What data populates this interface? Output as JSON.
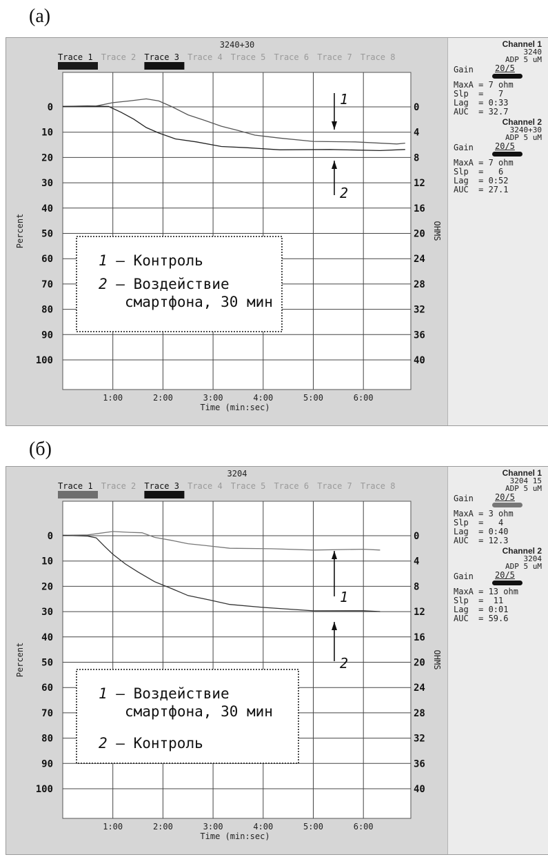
{
  "figure": {
    "panels": [
      {
        "label": "(а)",
        "chart_title": "3240+30",
        "traces": [
          "Trace 1",
          "Trace 2",
          "Trace 3",
          "Trace 4",
          "Trace 5",
          "Trace 6",
          "Trace 7",
          "Trace 8"
        ],
        "active_traces": [
          0,
          2
        ],
        "trace_bar_colors": [
          "#1a1a1a",
          "#111111"
        ],
        "legend": [
          "Контроль",
          "Воздействие\nсмартфона, 30 мин"
        ],
        "legend_nums": [
          "1",
          "2"
        ],
        "channels": [
          {
            "title": "Channel 1",
            "id": "3240",
            "reagent": "ADP 5 uM",
            "gain": "20/5",
            "bar_color": "#111111",
            "rows": [
              "MaxA = 7 ohm",
              "Slp  =   7",
              "Lag  = 0:33",
              "AUC  = 32.7"
            ]
          },
          {
            "title": "Channel 2",
            "id": "3240+30",
            "reagent": "ADP 5 uM",
            "gain": "20/5",
            "bar_color": "#111111",
            "rows": [
              "MaxA = 7 ohm",
              "Slp  =   6",
              "Lag  = 0:52",
              "AUC  = 27.1"
            ]
          }
        ]
      },
      {
        "label": "(б)",
        "chart_title": "3204",
        "traces": [
          "Trace 1",
          "Trace 2",
          "Trace 3",
          "Trace 4",
          "Trace 5",
          "Trace 6",
          "Trace 7",
          "Trace 8"
        ],
        "active_traces": [
          0,
          2
        ],
        "trace_bar_colors": [
          "#6e6e6e",
          "#111111"
        ],
        "legend": [
          "Воздействие\nсмартфона, 30 мин",
          "Контроль"
        ],
        "legend_nums": [
          "1",
          "2"
        ],
        "channels": [
          {
            "title": "Channel 1",
            "id": "3204 15",
            "reagent": "ADP 5 uM",
            "gain": "20/5",
            "bar_color": "#777777",
            "rows": [
              "MaxA = 3 ohm",
              "Slp  =   4",
              "Lag  = 0:40",
              "AUC  = 12.3"
            ]
          },
          {
            "title": "Channel 2",
            "id": "3204",
            "reagent": "ADP 5 uM",
            "gain": "20/5",
            "bar_color": "#111111",
            "rows": [
              "MaxA = 13 ohm",
              "Slp  =  11",
              "Lag  = 0:01",
              "AUC  = 59.6"
            ]
          }
        ]
      }
    ]
  },
  "chart_data": [
    {
      "type": "line",
      "title": "3240+30",
      "xlabel": "Time (min:sec)",
      "ylabel": "Percent",
      "y2label": "OHMS",
      "x_ticks": [
        "1:00",
        "2:00",
        "3:00",
        "4:00",
        "5:00",
        "6:00"
      ],
      "y_ticks": [
        "0",
        "10",
        "20",
        "30",
        "40",
        "50",
        "60",
        "70",
        "80",
        "90",
        "100"
      ],
      "y2_ticks": [
        "0",
        "4",
        "8",
        "12",
        "16",
        "20",
        "24",
        "28",
        "32",
        "36",
        "40"
      ],
      "xlim": [
        0,
        420
      ],
      "ylim": [
        100,
        0
      ],
      "grid": true,
      "series": [
        {
          "name": "1",
          "color": "#555555",
          "points": [
            [
              0,
              0
            ],
            [
              40,
              -0.5
            ],
            [
              60,
              -1.5
            ],
            [
              80,
              -2.5
            ],
            [
              100,
              -3
            ],
            [
              115,
              -2.5
            ],
            [
              130,
              0
            ],
            [
              150,
              3
            ],
            [
              170,
              5.5
            ],
            [
              190,
              7.5
            ],
            [
              210,
              9.5
            ],
            [
              230,
              11
            ],
            [
              260,
              12.5
            ],
            [
              300,
              13.5
            ],
            [
              350,
              14
            ],
            [
              400,
              14.5
            ],
            [
              410,
              14.5
            ]
          ],
          "annotation": "1"
        },
        {
          "name": "2",
          "color": "#222222",
          "points": [
            [
              0,
              0
            ],
            [
              30,
              -0.5
            ],
            [
              55,
              0
            ],
            [
              70,
              2
            ],
            [
              85,
              5
            ],
            [
              100,
              8
            ],
            [
              115,
              10.5
            ],
            [
              135,
              12.5
            ],
            [
              160,
              14
            ],
            [
              190,
              15.5
            ],
            [
              220,
              16.3
            ],
            [
              260,
              16.8
            ],
            [
              320,
              17
            ],
            [
              380,
              17.1
            ],
            [
              410,
              17
            ]
          ],
          "annotation": "2"
        }
      ]
    },
    {
      "type": "line",
      "title": "3204",
      "xlabel": "Time (min:sec)",
      "ylabel": "Percent",
      "y2label": "OHMS",
      "x_ticks": [
        "1:00",
        "2:00",
        "3:00",
        "4:00",
        "5:00",
        "6:00"
      ],
      "y_ticks": [
        "0",
        "10",
        "20",
        "30",
        "40",
        "50",
        "60",
        "70",
        "80",
        "90",
        "100"
      ],
      "y2_ticks": [
        "0",
        "4",
        "8",
        "12",
        "16",
        "20",
        "24",
        "28",
        "32",
        "36",
        "40"
      ],
      "xlim": [
        0,
        420
      ],
      "ylim": [
        100,
        0
      ],
      "grid": true,
      "series": [
        {
          "name": "1",
          "color": "#777777",
          "points": [
            [
              0,
              0
            ],
            [
              30,
              -0.5
            ],
            [
              60,
              -1.5
            ],
            [
              80,
              -1.5
            ],
            [
              95,
              -1
            ],
            [
              110,
              0.5
            ],
            [
              130,
              2
            ],
            [
              150,
              3
            ],
            [
              170,
              4
            ],
            [
              200,
              4.8
            ],
            [
              250,
              5.3
            ],
            [
              300,
              5.5
            ],
            [
              360,
              5.5
            ],
            [
              380,
              5.5
            ]
          ],
          "annotation": "1"
        },
        {
          "name": "2",
          "color": "#333333",
          "points": [
            [
              0,
              0
            ],
            [
              30,
              0
            ],
            [
              40,
              1
            ],
            [
              50,
              4
            ],
            [
              60,
              7.5
            ],
            [
              75,
              11
            ],
            [
              90,
              14.5
            ],
            [
              110,
              18
            ],
            [
              130,
              21
            ],
            [
              150,
              23.5
            ],
            [
              175,
              25.5
            ],
            [
              200,
              27
            ],
            [
              240,
              28.5
            ],
            [
              300,
              29.5
            ],
            [
              360,
              29.8
            ],
            [
              380,
              29.8
            ]
          ],
          "annotation": "2"
        }
      ]
    }
  ]
}
